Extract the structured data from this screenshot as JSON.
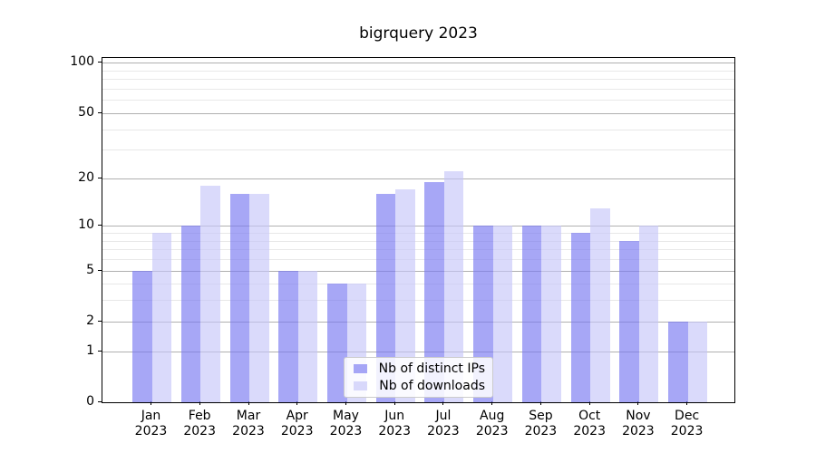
{
  "chart_data": {
    "type": "bar",
    "title": "bigrquery 2023",
    "categories": [
      "Jan 2023",
      "Feb 2023",
      "Mar 2023",
      "Apr 2023",
      "May 2023",
      "Jun 2023",
      "Jul 2023",
      "Aug 2023",
      "Sep 2023",
      "Oct 2023",
      "Nov 2023",
      "Dec 2023"
    ],
    "months": [
      "Jan",
      "Feb",
      "Mar",
      "Apr",
      "May",
      "Jun",
      "Jul",
      "Aug",
      "Sep",
      "Oct",
      "Nov",
      "Dec"
    ],
    "year_label": "2023",
    "series": [
      {
        "name": "Nb of distinct IPs",
        "color": "rgba(122,122,242,0.66)",
        "values": [
          5,
          10,
          16,
          5,
          4,
          16,
          19,
          10,
          10,
          9,
          8,
          2
        ]
      },
      {
        "name": "Nb of downloads",
        "color": "rgba(196,196,248,0.63)",
        "values": [
          9,
          18,
          16,
          5,
          4,
          17,
          22,
          10,
          10,
          13,
          10,
          2
        ]
      }
    ],
    "y_axis": {
      "scale": "log1p",
      "tick_values": [
        0,
        1,
        2,
        5,
        10,
        20,
        50,
        100
      ],
      "tick_labels": [
        "0",
        "1",
        "2",
        "5",
        "10",
        "20",
        "50",
        "100"
      ],
      "minor_gridlines": [
        3,
        4,
        6,
        7,
        8,
        9,
        30,
        40,
        60,
        70,
        80,
        90
      ],
      "max": 106.8
    },
    "grid": true,
    "legend_position": "lower center"
  },
  "styles": {
    "bar_dark": "rgba(122,122,242,0.66)",
    "bar_light": "rgba(196,196,248,0.63)",
    "major_grid_color": "#b0b0b0",
    "minor_grid_color": "#e8e8e8",
    "axis_color": "#000000",
    "background": "#ffffff"
  }
}
